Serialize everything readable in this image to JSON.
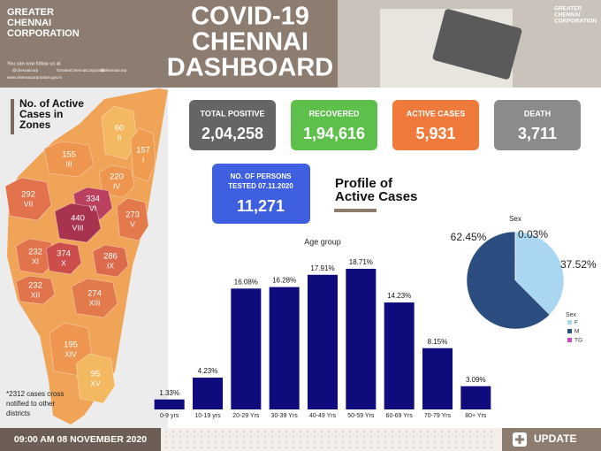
{
  "header": {
    "org": [
      "GREATER",
      "CHENNAI",
      "CORPORATION"
    ],
    "follow": "You can now follow us at",
    "social": [
      "@chennaicorp",
      "/GreaterChennaiCorporation",
      "@chennaicorp"
    ],
    "website": "www.chennaicorporation.gov.in",
    "title": [
      "COVID-19",
      "CHENNAI",
      "DASHBOARD"
    ],
    "logo": [
      "GREATER",
      "CHENNAI",
      "CORPORATION"
    ]
  },
  "stats": [
    {
      "label": "TOTAL POSITIVE",
      "value": "2,04,258",
      "color": "#656565"
    },
    {
      "label": "RECOVERED",
      "value": "1,94,616",
      "color": "#5dc04a"
    },
    {
      "label": "ACTIVE CASES",
      "value": "5,931",
      "color": "#f07a3b"
    },
    {
      "label": "DEATH",
      "value": "3,711",
      "color": "#8b8b8b"
    }
  ],
  "tested": {
    "label": [
      "NO. OF PERSONS",
      "TESTED 07.11.2020"
    ],
    "value": "11,271",
    "color": "#3d5fe0"
  },
  "map": {
    "title": [
      "No. of Active",
      "Cases in",
      "Zones"
    ],
    "note": [
      "*2312 cases cross",
      "notified to other",
      "districts"
    ],
    "zones": [
      {
        "value": "60",
        "zone": "II",
        "color": "#f4b860"
      },
      {
        "value": "157",
        "zone": "I",
        "color": "#ef9c50"
      },
      {
        "value": "155",
        "zone": "III",
        "color": "#ee9650"
      },
      {
        "value": "220",
        "zone": "IV",
        "color": "#ee9650"
      },
      {
        "value": "292",
        "zone": "VII",
        "color": "#e2724c"
      },
      {
        "value": "334",
        "zone": "VI",
        "color": "#b9405e"
      },
      {
        "value": "440",
        "zone": "VIII",
        "color": "#a8334f"
      },
      {
        "value": "273",
        "zone": "V",
        "color": "#e47a4c"
      },
      {
        "value": "232",
        "zone": "XI",
        "color": "#e2744c"
      },
      {
        "value": "374",
        "zone": "X",
        "color": "#cc4e4c"
      },
      {
        "value": "286",
        "zone": "IX",
        "color": "#dc6a4c"
      },
      {
        "value": "232",
        "zone": "XII",
        "color": "#e2744c"
      },
      {
        "value": "274",
        "zone": "XIII",
        "color": "#e27a4c"
      },
      {
        "value": "195",
        "zone": "XIV",
        "color": "#ee9650"
      },
      {
        "value": "95",
        "zone": "XV",
        "color": "#f4b860"
      }
    ]
  },
  "profile_title": [
    "Profile of",
    "Active Cases"
  ],
  "chart_data": [
    {
      "type": "bar",
      "title": "Age group",
      "categories": [
        "0-9 yrs",
        "10-19 yrs",
        "20-29 Yrs",
        "30-39 Yrs",
        "40-49 Yrs",
        "50-59 Yrs",
        "60-69 Yrs",
        "70-79 Yrs",
        "80+ Yrs"
      ],
      "values": [
        1.33,
        4.23,
        16.08,
        16.28,
        17.91,
        18.71,
        14.23,
        8.15,
        3.09
      ],
      "value_labels": [
        "1.33%",
        "4.23%",
        "16.08%",
        "16.28%",
        "17.91%",
        "18.71%",
        "14.23%",
        "8.15%",
        "3.09%"
      ],
      "color": "#0e0b7c",
      "ylim": [
        0,
        20
      ]
    },
    {
      "type": "pie",
      "title": "Sex",
      "legend_title": "Sex",
      "categories": [
        "F",
        "M",
        "TG"
      ],
      "values": [
        37.52,
        62.45,
        0.03
      ],
      "value_labels": [
        "37.52%",
        "62.45%",
        "0.03%"
      ],
      "colors": [
        "#a9d6f0",
        "#2c4d7f",
        "#d048c8"
      ]
    }
  ],
  "footer": {
    "date": "09:00 AM 08 NOVEMBER 2020",
    "button": "UPDATE"
  }
}
